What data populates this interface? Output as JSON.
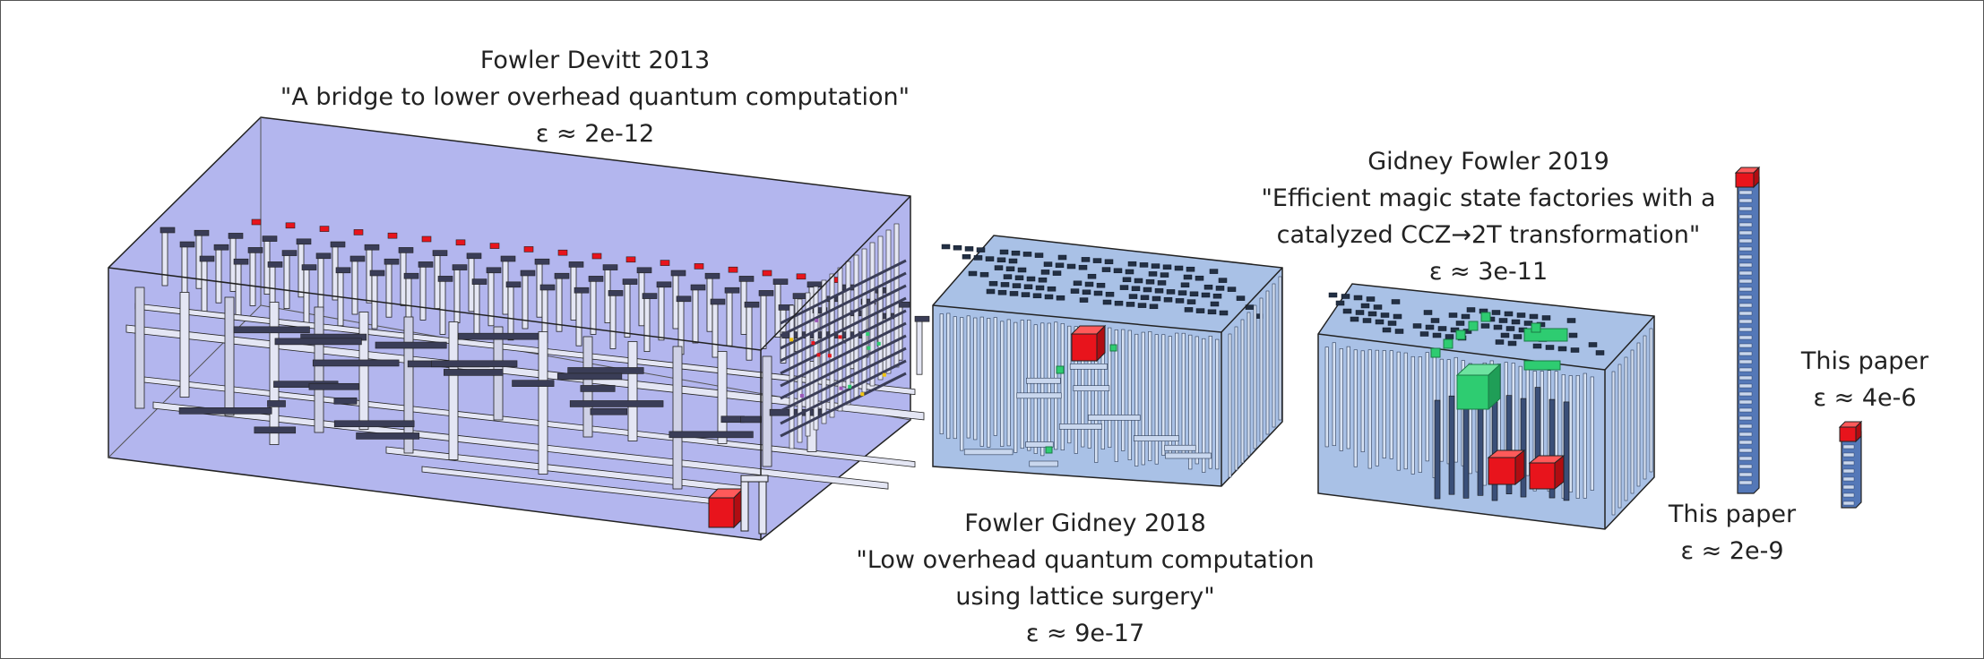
{
  "labels": {
    "fd2013": {
      "authors": "Fowler Devitt 2013",
      "title": "\"A bridge to lower overhead quantum computation\"",
      "error": "ε ≈ 2e-12"
    },
    "fg2018": {
      "authors": "Fowler Gidney 2018",
      "title_line1": "\"Low overhead quantum computation",
      "title_line2": "using lattice surgery\"",
      "error": "ε ≈ 9e-17"
    },
    "gf2019": {
      "authors": "Gidney Fowler 2019",
      "title_line1": "\"Efficient magic state factories with a",
      "title_line2": "catalyzed CCZ→2T transformation\"",
      "error": "ε ≈ 3e-11"
    },
    "tp_tall": {
      "authors": "This paper",
      "error": "ε ≈ 2e-9"
    },
    "tp_small": {
      "authors": "This paper",
      "error": "ε ≈ 4e-6"
    }
  },
  "colors": {
    "box1_fill": "#b3b6ee",
    "box_blue_fill": "#a9c1e6",
    "pipe_light": "#e4e6f4",
    "pipe_dark": "#3a3d57",
    "magic_red": "#e8141c",
    "catalyst_green": "#2ecc71",
    "outline": "#111111"
  },
  "icons": [
    "red-cube-icon",
    "green-cube-icon"
  ]
}
